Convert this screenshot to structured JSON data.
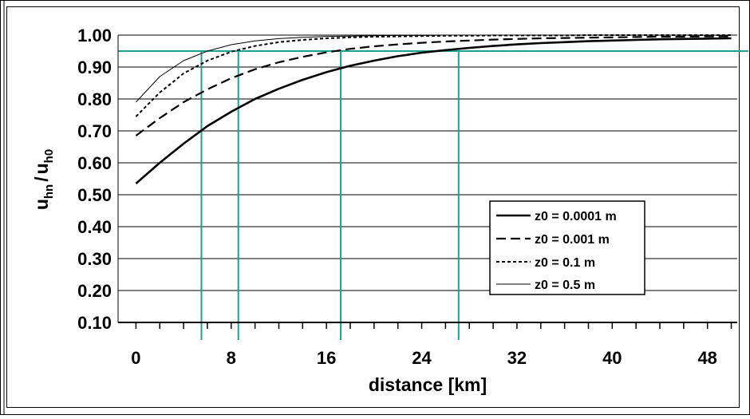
{
  "chart_data": {
    "type": "line",
    "title": "",
    "xlabel": "distance [km]",
    "ylabel": {
      "main": "u",
      "sub1": "hn",
      "slash": "/",
      "main2": "u",
      "sub2": "h0"
    },
    "xlim": [
      -1.5,
      50.5
    ],
    "ylim": [
      0.1,
      1.0
    ],
    "x_ticks": [
      0,
      8,
      16,
      24,
      32,
      40,
      48
    ],
    "x_tick_labels": [
      "0",
      "8",
      "16",
      "24",
      "32",
      "40",
      "48"
    ],
    "y_ticks": [
      0.1,
      0.2,
      0.3,
      0.4,
      0.5,
      0.6,
      0.7,
      0.8,
      0.9,
      1.0
    ],
    "y_tick_labels": [
      "0.10",
      "0.20",
      "0.30",
      "0.40",
      "0.50",
      "0.60",
      "0.70",
      "0.80",
      "0.90",
      "1.00"
    ],
    "grid": {
      "horizontal": true,
      "vertical": false
    },
    "legend_position": "center-right",
    "x": [
      0,
      2,
      4,
      6,
      8,
      10,
      12,
      14,
      16,
      18,
      20,
      22,
      24,
      26,
      28,
      30,
      32,
      34,
      36,
      38,
      40,
      42,
      44,
      46,
      48,
      50
    ],
    "series": [
      {
        "name": "z0 = 0.0001 m",
        "style": "solid-thick",
        "values": [
          0.535,
          0.6,
          0.66,
          0.715,
          0.76,
          0.8,
          0.832,
          0.86,
          0.884,
          0.904,
          0.92,
          0.934,
          0.945,
          0.953,
          0.96,
          0.966,
          0.971,
          0.975,
          0.978,
          0.981,
          0.983,
          0.985,
          0.987,
          0.988,
          0.989,
          0.99
        ]
      },
      {
        "name": "z0 = 0.001 m",
        "style": "long-dash",
        "values": [
          0.685,
          0.74,
          0.79,
          0.83,
          0.865,
          0.893,
          0.915,
          0.932,
          0.946,
          0.957,
          0.965,
          0.971,
          0.976,
          0.98,
          0.983,
          0.986,
          0.988,
          0.99,
          0.991,
          0.992,
          0.993,
          0.994,
          0.995,
          0.995,
          0.996,
          0.996
        ]
      },
      {
        "name": "z0 = 0.1 m",
        "style": "short-dash",
        "values": [
          0.745,
          0.82,
          0.88,
          0.92,
          0.948,
          0.966,
          0.978,
          0.985,
          0.99,
          0.993,
          0.995,
          0.996,
          0.997,
          0.998,
          0.998,
          0.999,
          0.999,
          0.999,
          0.999,
          1.0,
          1.0,
          1.0,
          1.0,
          1.0,
          1.0,
          1.0
        ]
      },
      {
        "name": "z0 = 0.5 m",
        "style": "thin",
        "values": [
          0.79,
          0.87,
          0.92,
          0.95,
          0.97,
          0.982,
          0.989,
          0.993,
          0.996,
          0.997,
          0.998,
          0.999,
          0.999,
          1.0,
          1.0,
          1.0,
          1.0,
          1.0,
          1.0,
          1.0,
          1.0,
          1.0,
          1.0,
          1.0,
          1.0,
          1.0
        ]
      }
    ],
    "reference_lines": {
      "color": "#1aa392",
      "horizontal_y": 0.95,
      "vertical_x": [
        5.5,
        8.6,
        17.2,
        27.1
      ]
    }
  }
}
